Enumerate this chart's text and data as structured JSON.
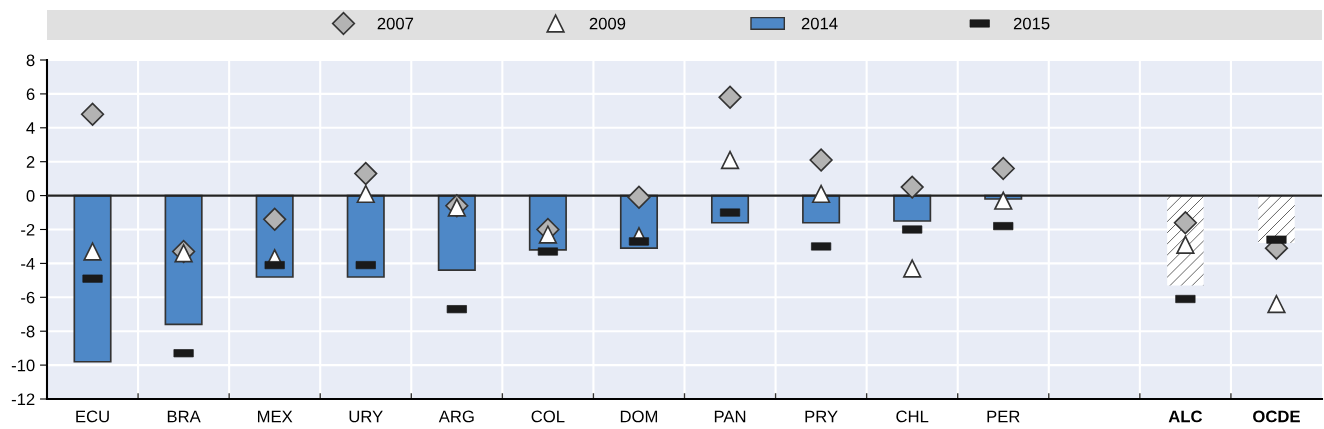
{
  "chart_data": {
    "type": "bar",
    "categories": [
      "ECU",
      "BRA",
      "MEX",
      "URY",
      "ARG",
      "COL",
      "DOM",
      "PAN",
      "PRY",
      "CHL",
      "PER",
      null,
      "ALC",
      "OCDE"
    ],
    "series": [
      {
        "name": "2007",
        "type": "scatter",
        "marker": "diamond",
        "color": "#b3b3b3",
        "values": [
          4.8,
          -3.3,
          -1.4,
          1.3,
          -0.6,
          -2.0,
          -0.1,
          5.8,
          2.1,
          0.5,
          1.6,
          null,
          -1.6,
          -3.1
        ]
      },
      {
        "name": "2009",
        "type": "scatter",
        "marker": "triangle",
        "color": "#ffffff",
        "values": [
          -3.3,
          -3.4,
          -3.7,
          0.1,
          -0.7,
          -2.3,
          -2.4,
          2.1,
          0.1,
          -4.3,
          -0.3,
          null,
          -2.9,
          -6.4
        ]
      },
      {
        "name": "2014",
        "color": "#4e88c7",
        "colors": [
          "#4e88c7",
          "#4e88c7",
          "#4e88c7",
          "#4e88c7",
          "#4e88c7",
          "#4e88c7",
          "#4e88c7",
          "#4e88c7",
          "#4e88c7",
          "#4e88c7",
          "#4e88c7",
          "#4e88c7",
          "#ffffff",
          "#ffffff"
        ],
        "values": [
          -9.8,
          -7.6,
          -4.8,
          -4.8,
          -4.4,
          -3.2,
          -3.1,
          -1.6,
          -1.6,
          -1.5,
          -0.2,
          null,
          -5.3,
          -2.8
        ]
      },
      {
        "name": "2015",
        "type": "scatter",
        "color": "#1a1a1a",
        "values": [
          -4.9,
          -9.3,
          -4.1,
          -4.1,
          -6.7,
          -3.3,
          -2.7,
          -1.0,
          -3.0,
          -2.0,
          -1.8,
          null,
          -6.1,
          -2.6
        ]
      }
    ],
    "ylim": [
      -12,
      8
    ],
    "yticks": [
      -12,
      -10,
      -8,
      -6,
      -4,
      -2,
      0,
      2,
      4,
      6,
      8
    ],
    "grid": true,
    "legend": "top"
  }
}
